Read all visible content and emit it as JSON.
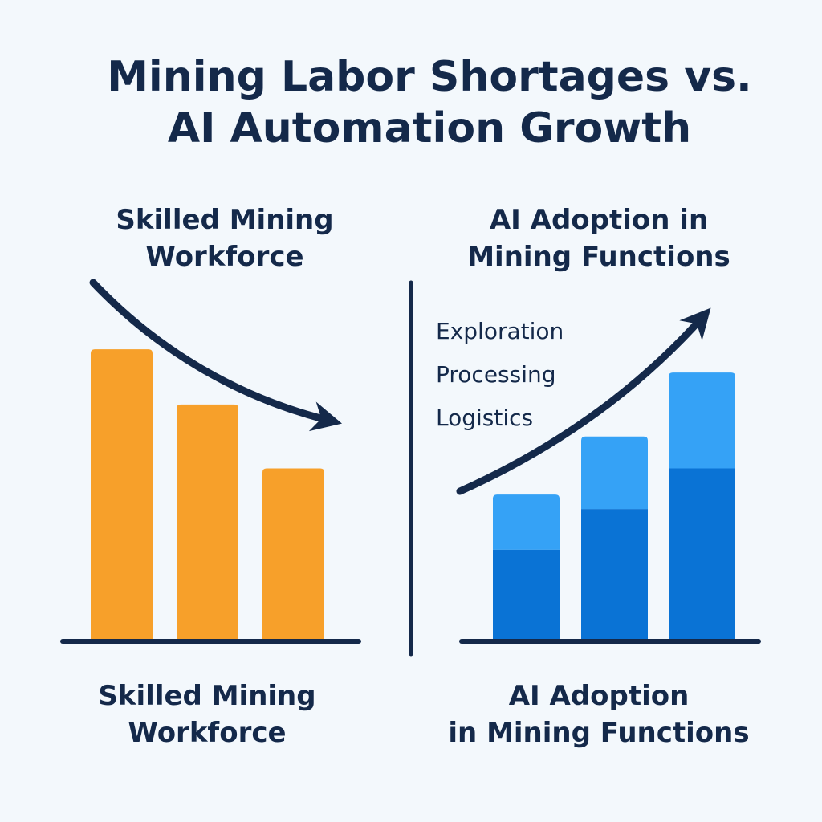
{
  "title": {
    "line1": "Mining Labor Shortages vs.",
    "line2": "AI Automation Growth"
  },
  "colors": {
    "background": "#f3f8fc",
    "text": "#14294a",
    "workforce_bar": "#f7a02a",
    "ai_base": "#0a73d5",
    "ai_top": "#35a2f6",
    "axis": "#14294a"
  },
  "chart_data": [
    {
      "type": "bar",
      "title_top": [
        "Skilled Mining",
        "Workforce"
      ],
      "title_bottom": [
        "Skilled Mining",
        "Workforce"
      ],
      "categories": [
        "",
        "",
        ""
      ],
      "values": [
        100,
        81,
        59
      ],
      "trend": "decreasing",
      "trend_icon": "down-arrow-icon",
      "ylim": [
        0,
        110
      ],
      "grid": false
    },
    {
      "type": "bar",
      "stacked": true,
      "title_top": [
        "AI Adoption in",
        "Mining Functions"
      ],
      "title_bottom": [
        "AI Adoption",
        "in Mining Functions"
      ],
      "categories": [
        "",
        "",
        ""
      ],
      "series": [
        {
          "values": [
            31,
            45,
            59
          ]
        },
        {
          "values": [
            19,
            25,
            33
          ]
        }
      ],
      "labels": [
        "Exploration",
        "Processing",
        "Logistics"
      ],
      "trend": "increasing",
      "trend_icon": "up-arrow-icon",
      "ylim": [
        0,
        110
      ],
      "grid": false
    }
  ]
}
